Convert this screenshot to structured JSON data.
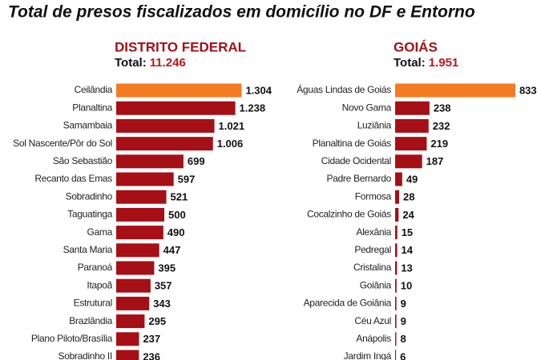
{
  "title": "Total de presos fiscalizados em domicílio no DF e Entorno",
  "chart_data": [
    {
      "type": "bar",
      "orientation": "horizontal",
      "title": "DISTRITO FEDERAL",
      "subtitle": "Total:",
      "total": "11.246",
      "categories": [
        "Ceilândia",
        "Planaltina",
        "Samambaia",
        "Sol Nascente/Pôr do Sol",
        "São Sebastião",
        "Recanto das Emas",
        "Sobradinho",
        "Taguatinga",
        "Gama",
        "Santa Maria",
        "Paranoá",
        "Itapoã",
        "Estrutural",
        "Brazlândia",
        "Plano Piloto/Brasília",
        "Sobradinho II"
      ],
      "values": [
        1304,
        1238,
        1021,
        1006,
        699,
        597,
        521,
        500,
        490,
        447,
        395,
        357,
        343,
        295,
        237,
        236
      ],
      "value_labels": [
        "1.304",
        "1.238",
        "1.021",
        "1.006",
        "699",
        "597",
        "521",
        "500",
        "490",
        "447",
        "395",
        "357",
        "343",
        "295",
        "237",
        "236"
      ],
      "colors": [
        "#f47b20",
        "#a50f15",
        "#a50f15",
        "#a50f15",
        "#a50f15",
        "#a50f15",
        "#a50f15",
        "#a50f15",
        "#a50f15",
        "#a50f15",
        "#a50f15",
        "#a50f15",
        "#a50f15",
        "#a50f15",
        "#a50f15",
        "#a50f15"
      ],
      "xlim": [
        0,
        1400
      ]
    },
    {
      "type": "bar",
      "orientation": "horizontal",
      "title": "GOIÁS",
      "subtitle": "Total:",
      "total": "1.951",
      "categories": [
        "Águas Lindas de Goiás",
        "Novo Gama",
        "Luziânia",
        "Planaltina de Goiás",
        "Cidade Ocidental",
        "Padre Bernardo",
        "Formosa",
        "Cocalzinho de Goiás",
        "Alexânia",
        "Pedregal",
        "Cristalina",
        "Goiânia",
        "Aparecida de Goiânia",
        "Céu Azul",
        "Anápolis",
        "Jardim Ingá"
      ],
      "values": [
        833,
        238,
        232,
        219,
        187,
        49,
        28,
        24,
        15,
        14,
        13,
        10,
        9,
        9,
        8,
        6
      ],
      "colors": [
        "#f47b20",
        "#a50f15",
        "#a50f15",
        "#a50f15",
        "#a50f15",
        "#a50f15",
        "#a50f15",
        "#a50f15",
        "#a50f15",
        "#a50f15",
        "#a50f15",
        "#a50f15",
        "#a50f15",
        "#a50f15",
        "#a50f15",
        "#a50f15"
      ],
      "xlim": [
        0,
        900
      ]
    }
  ]
}
